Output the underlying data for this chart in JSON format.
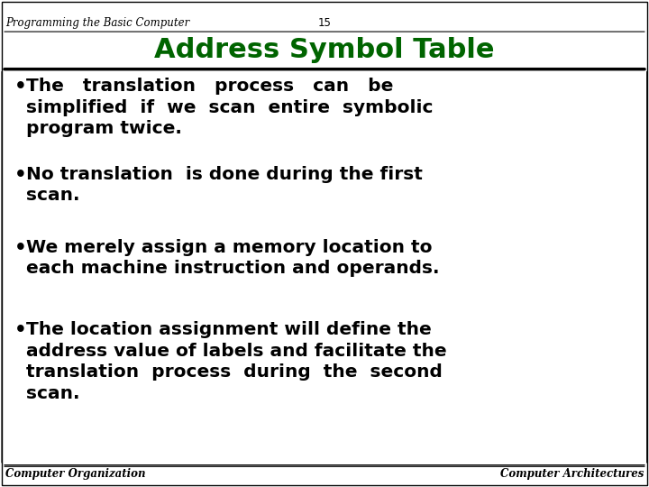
{
  "header_left": "Programming the Basic Computer",
  "header_center": "15",
  "title": "Address Symbol Table",
  "title_color": "#006400",
  "footer_left": "Computer Organization",
  "footer_right": "Computer Architectures",
  "bg_color": "#ffffff",
  "text_color": "#000000",
  "line_color": "#000000",
  "title_fontsize": 22,
  "body_fontsize": 14.5,
  "header_fontsize": 8.5,
  "footer_fontsize": 8.5,
  "bullet_items": [
    "The   translation   process   can   be\nsimplified  if  we  scan  entire  symbolic\nprogram twice.",
    "No translation  is done during the first\nscan.",
    "We merely assign a memory location to\neach machine instruction and operands.",
    "The location assignment will define the\naddress value of labels and facilitate the\ntranslation  process  during  the  second\nscan."
  ]
}
